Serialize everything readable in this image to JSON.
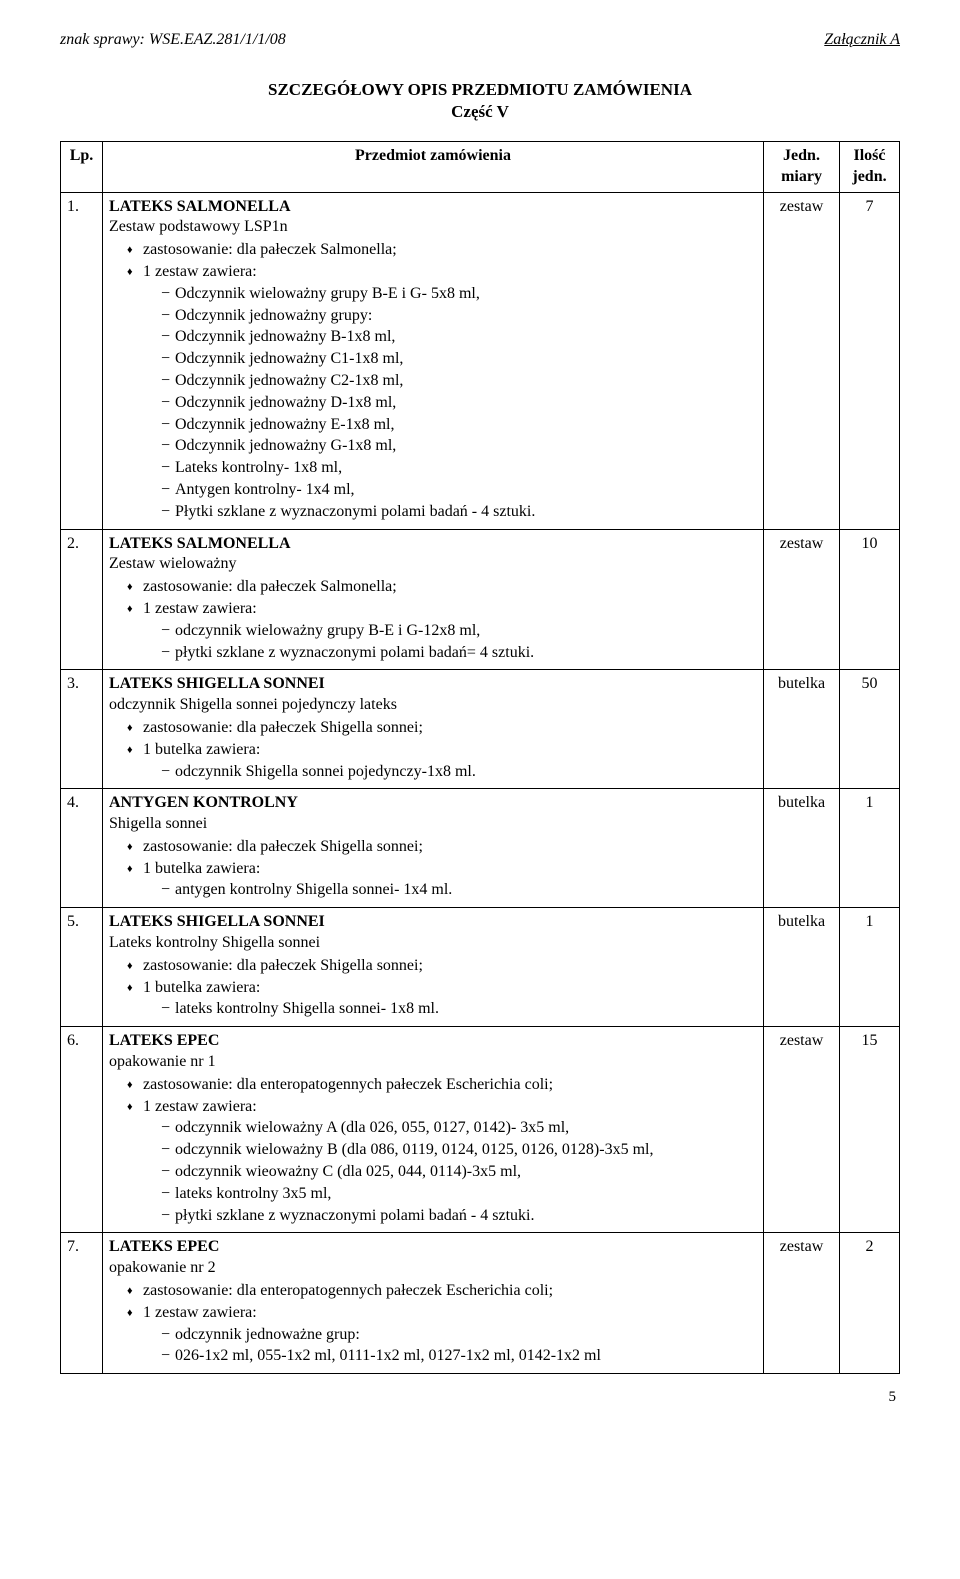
{
  "header": {
    "left": "znak sprawy: WSE.EAZ.281/1/1/08",
    "right": "Załącznik A"
  },
  "title": {
    "line1": "SZCZEGÓŁOWY OPIS PRZEDMIOTU ZAMÓWIENIA",
    "line2": "Część V"
  },
  "table": {
    "headers": {
      "lp": "Lp.",
      "subject": "Przedmiot zamówienia",
      "unit_l1": "Jedn.",
      "unit_l2": "miary",
      "qty_l1": "Ilość",
      "qty_l2": "jedn."
    }
  },
  "rows": [
    {
      "lp": "1.",
      "name": "LATEKS SALMONELLA",
      "sub": "Zestaw podstawowy LSP1n",
      "b1": [
        "zastosowanie: dla pałeczek Salmonella;",
        "1 zestaw zawiera:"
      ],
      "b2": [
        "Odczynnik wieloważny grupy B-E i G- 5x8 ml,",
        "Odczynnik jednoważny grupy:",
        "Odczynnik jednoważny B-1x8 ml,",
        "Odczynnik jednoważny C1-1x8 ml,",
        "Odczynnik jednoważny C2-1x8 ml,",
        "Odczynnik jednoważny D-1x8 ml,",
        "Odczynnik jednoważny E-1x8 ml,",
        "Odczynnik jednoważny G-1x8 ml,",
        "Lateks kontrolny- 1x8 ml,",
        "Antygen kontrolny- 1x4 ml,",
        "Płytki szklane z wyznaczonymi polami badań - 4 sztuki."
      ],
      "unit": "zestaw",
      "qty": "7"
    },
    {
      "lp": "2.",
      "name": "LATEKS SALMONELLA",
      "sub": "Zestaw wieloważny",
      "b1": [
        "zastosowanie: dla pałeczek Salmonella;",
        "1 zestaw zawiera:"
      ],
      "b2": [
        "odczynnik wieloważny grupy B-E i G-12x8 ml,",
        "płytki szklane z wyznaczonymi polami badań= 4 sztuki."
      ],
      "unit": "zestaw",
      "qty": "10"
    },
    {
      "lp": "3.",
      "name": "LATEKS SHIGELLA SONNEI",
      "sub": "odczynnik Shigella sonnei pojedynczy lateks",
      "b1": [
        "zastosowanie: dla pałeczek Shigella sonnei;",
        "1 butelka zawiera:"
      ],
      "b2": [
        "odczynnik Shigella sonnei pojedynczy-1x8 ml."
      ],
      "unit": "butelka",
      "qty": "50"
    },
    {
      "lp": "4.",
      "name": "ANTYGEN KONTROLNY",
      "sub": "Shigella sonnei",
      "b1": [
        "zastosowanie: dla pałeczek Shigella sonnei;",
        "1 butelka zawiera:"
      ],
      "b2": [
        "antygen kontrolny Shigella sonnei- 1x4 ml."
      ],
      "unit": "butelka",
      "qty": "1"
    },
    {
      "lp": "5.",
      "name": "LATEKS SHIGELLA SONNEI",
      "sub": "Lateks kontrolny Shigella sonnei",
      "b1": [
        "zastosowanie: dla pałeczek Shigella sonnei;",
        "1 butelka zawiera:"
      ],
      "b2": [
        "lateks kontrolny Shigella sonnei- 1x8 ml."
      ],
      "unit": "butelka",
      "qty": "1"
    },
    {
      "lp": "6.",
      "name": "LATEKS EPEC",
      "sub": "opakowanie nr 1",
      "b1": [
        "zastosowanie: dla enteropatogennych pałeczek Escherichia coli;",
        "1 zestaw zawiera:"
      ],
      "b2": [
        "odczynnik wieloważny A (dla 026, 055, 0127, 0142)- 3x5 ml,",
        "odczynnik wieloważny B (dla 086, 0119, 0124, 0125, 0126, 0128)-3x5 ml,",
        "odczynnik wieoważny C (dla 025, 044, 0114)-3x5 ml,",
        "lateks kontrolny 3x5 ml,",
        "płytki szklane z wyznaczonymi polami badań - 4 sztuki."
      ],
      "unit": "zestaw",
      "qty": "15"
    },
    {
      "lp": "7.",
      "name": "LATEKS EPEC",
      "sub": "opakowanie nr 2",
      "b1": [
        "zastosowanie: dla enteropatogennych pałeczek Escherichia coli;",
        "1 zestaw zawiera:"
      ],
      "b2": [
        "odczynnik jednoważne grup:",
        "026-1x2 ml, 055-1x2 ml, 0111-1x2 ml, 0127-1x2 ml, 0142-1x2 ml"
      ],
      "unit": "zestaw",
      "qty": "2",
      "unit_top": true
    }
  ],
  "page_number": "5"
}
